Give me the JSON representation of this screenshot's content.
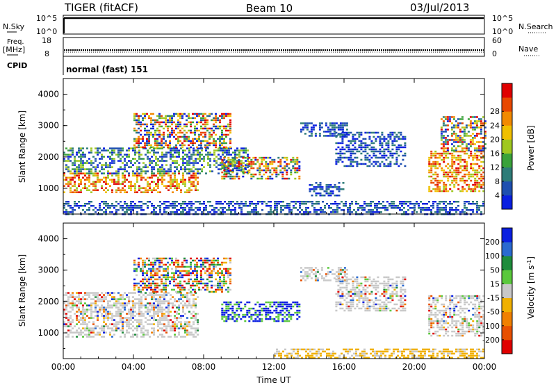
{
  "header": {
    "radar": "TIGER (fitACF)",
    "beam": "Beam 10",
    "date": "03/Jul/2013"
  },
  "panels": {
    "nsky": {
      "label": "N.Sky",
      "top_tick": "10^5",
      "bottom_tick": "10^0",
      "right_label": "N.Search",
      "right_top": "10^5",
      "right_bottom": "10^0"
    },
    "freq": {
      "label_line1": "Freq.",
      "label_line2": "[MHz]",
      "top_tick": "18",
      "bottom_tick": "8",
      "right_label": "Nave",
      "right_top": "60",
      "right_bottom": "0"
    },
    "cpid": {
      "label": "CPID",
      "text": "normal (fast) 151"
    }
  },
  "chart_data": [
    {
      "type": "heatmap",
      "name": "power-panel",
      "ylabel": "Slant Range [km]",
      "xlabel": "",
      "ylim": [
        180,
        4500
      ],
      "xlim": [
        0,
        24
      ],
      "yticks": [
        "1000",
        "2000",
        "3000",
        "4000"
      ],
      "colorbar": {
        "label": "Power [dB]",
        "ticks": [
          "4",
          "8",
          "12",
          "16",
          "20",
          "24",
          "28"
        ],
        "colors": [
          "#0a1fe0",
          "#1e4fb0",
          "#2e7c78",
          "#3aa23a",
          "#a0c820",
          "#f0c000",
          "#f28a00",
          "#e84800",
          "#e00000"
        ]
      },
      "regions": [
        {
          "t0": 0.0,
          "t1": 7.7,
          "r0": 850,
          "r1": 1500,
          "level": "high"
        },
        {
          "t0": 0.0,
          "t1": 10.5,
          "r0": 1500,
          "r1": 2300,
          "level": "mid"
        },
        {
          "t0": 4.0,
          "t1": 9.5,
          "r0": 2300,
          "r1": 3400,
          "level": "mixed"
        },
        {
          "t0": 9.0,
          "t1": 13.5,
          "r0": 1300,
          "r1": 2000,
          "level": "mixed"
        },
        {
          "t0": 13.5,
          "t1": 16.2,
          "r0": 2700,
          "r1": 3100,
          "level": "low"
        },
        {
          "t0": 15.5,
          "t1": 19.5,
          "r0": 1700,
          "r1": 2800,
          "level": "low"
        },
        {
          "t0": 14.0,
          "t1": 16.0,
          "r0": 800,
          "r1": 1200,
          "level": "low"
        },
        {
          "t0": 20.8,
          "t1": 24.0,
          "r0": 900,
          "r1": 2200,
          "level": "high"
        },
        {
          "t0": 21.5,
          "t1": 24.0,
          "r0": 2200,
          "r1": 3300,
          "level": "mixed"
        },
        {
          "t0": 0.0,
          "t1": 24.0,
          "r0": 180,
          "r1": 600,
          "level": "low"
        }
      ]
    },
    {
      "type": "heatmap",
      "name": "velocity-panel",
      "ylabel": "Slant Range [km]",
      "xlabel": "Time UT",
      "ylim": [
        180,
        4500
      ],
      "xlim": [
        0,
        24
      ],
      "yticks": [
        "1000",
        "2000",
        "3000",
        "4000"
      ],
      "xticks": [
        "00:00",
        "04:00",
        "08:00",
        "12:00",
        "16:00",
        "20:00",
        "00:00"
      ],
      "colorbar": {
        "label": "Velocity [m s",
        "label_sup": "-1",
        "label_end": "]",
        "ticks": [
          "200",
          "100",
          "50",
          "15",
          "-15",
          "-50",
          "-100",
          "-200"
        ],
        "colors": [
          "#0a1fe0",
          "#2a6ad0",
          "#1e8c3c",
          "#5ac83c",
          "#c8c8c8",
          "#f0b000",
          "#f08000",
          "#e85000",
          "#e00000"
        ]
      },
      "regions": [
        {
          "t0": 0.0,
          "t1": 7.7,
          "r0": 850,
          "r1": 2300,
          "level": "grey"
        },
        {
          "t0": 4.0,
          "t1": 9.5,
          "r0": 2300,
          "r1": 3400,
          "level": "mixed"
        },
        {
          "t0": 9.0,
          "t1": 13.5,
          "r0": 1400,
          "r1": 2000,
          "level": "blue"
        },
        {
          "t0": 13.5,
          "t1": 16.2,
          "r0": 2700,
          "r1": 3100,
          "level": "grey"
        },
        {
          "t0": 15.5,
          "t1": 19.5,
          "r0": 1700,
          "r1": 2800,
          "level": "grey"
        },
        {
          "t0": 20.8,
          "t1": 24.0,
          "r0": 900,
          "r1": 2200,
          "level": "grey"
        },
        {
          "t0": 12.0,
          "t1": 24.0,
          "r0": 180,
          "r1": 500,
          "level": "orange"
        }
      ]
    }
  ]
}
